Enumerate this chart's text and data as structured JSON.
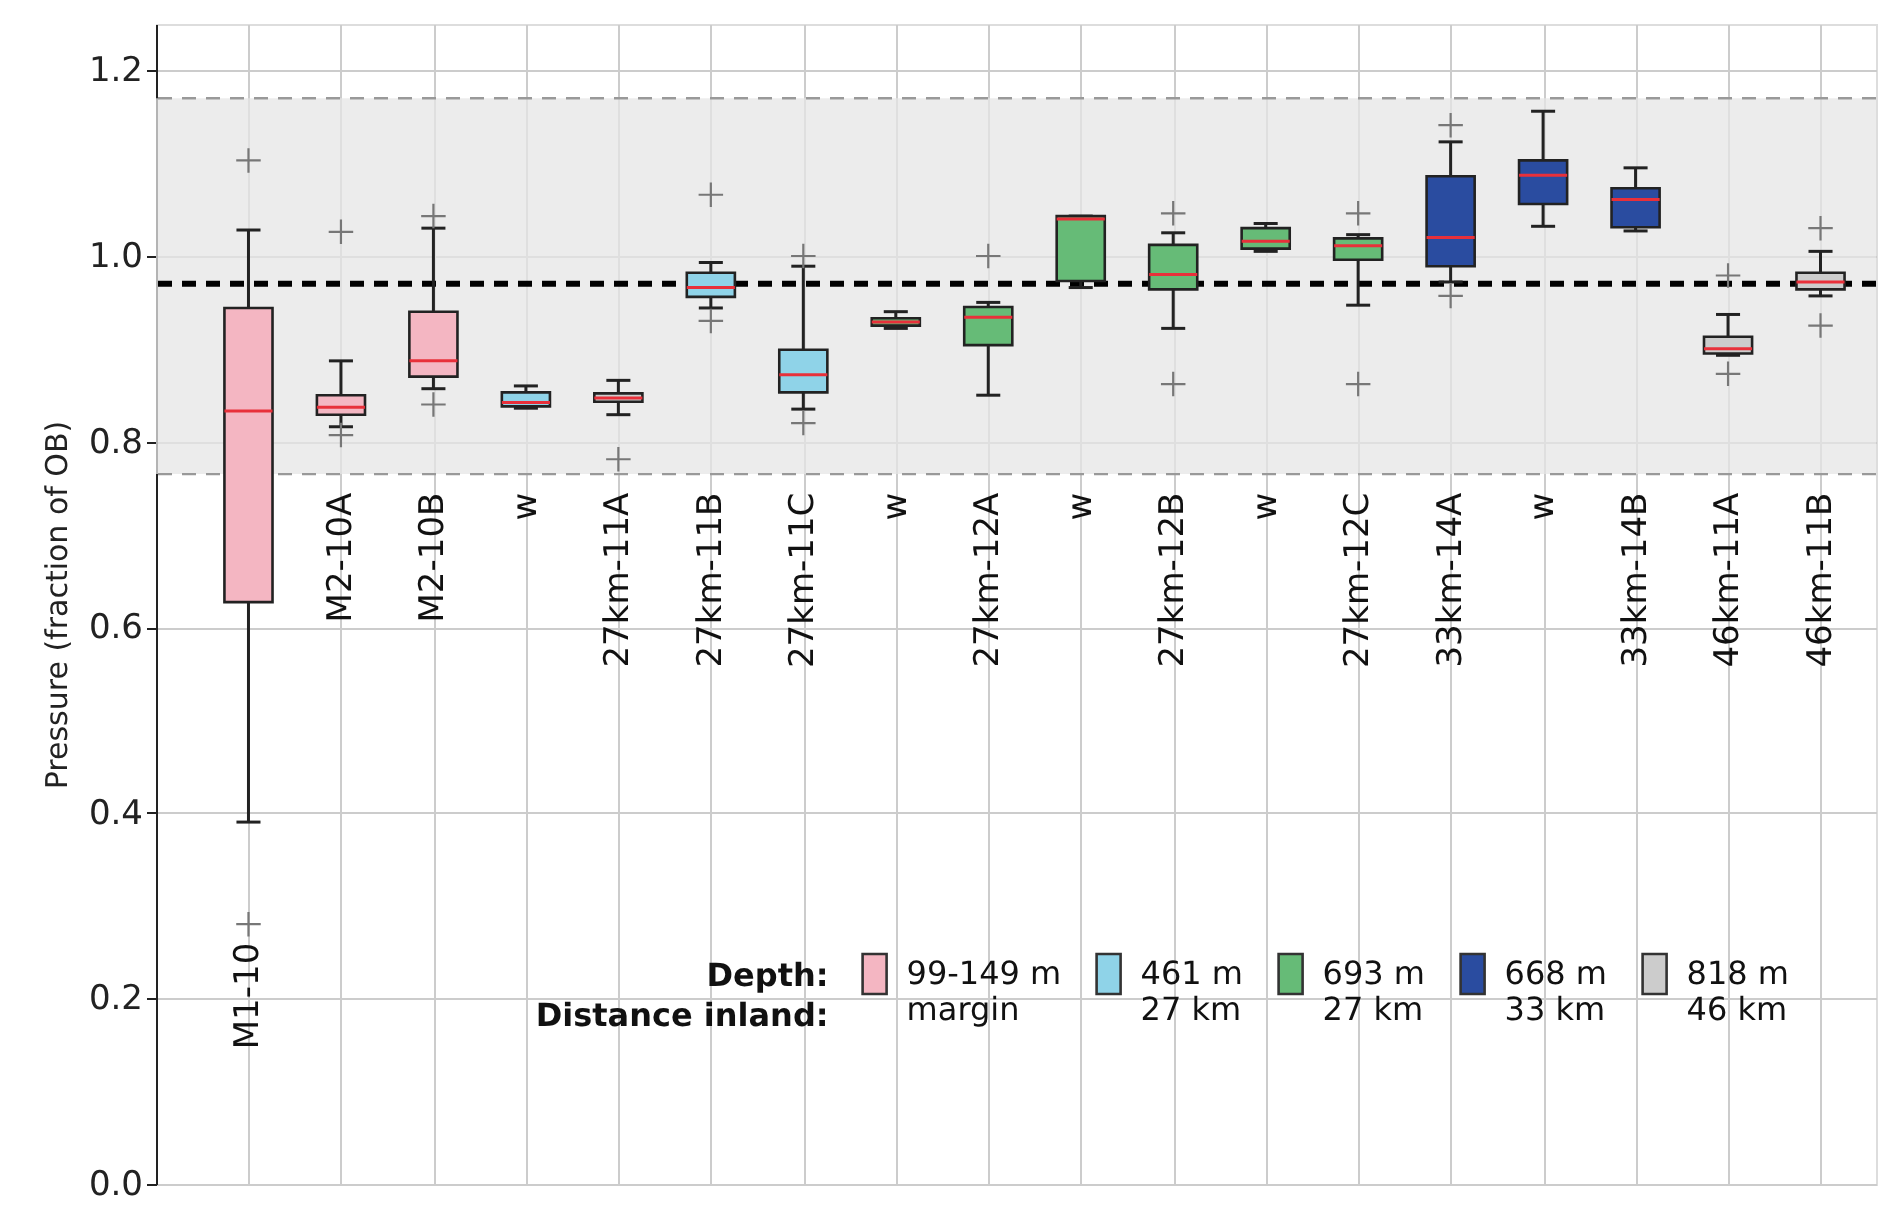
{
  "chart_data": {
    "type": "box",
    "ylabel": "Pressure (fraction of OB)",
    "categories": [
      "M1-10",
      "M2-10A",
      "M2-10B",
      "w",
      "27km-11A",
      "27km-11B",
      "27km-11C",
      "w",
      "27km-12A",
      "w",
      "27km-12B",
      "w",
      "27km-12C",
      "33km-14A",
      "w",
      "33km-14B",
      "46km-11A",
      "46km-11B"
    ],
    "series": [
      {
        "name": "99-149 m\nmargin",
        "color": "#f4b6c2",
        "boxes": [
          {
            "low": 0.39,
            "q1": 0.627,
            "median": 0.833,
            "q3": 0.944,
            "high": 1.028,
            "outliers": [
              1.103,
              0.28
            ]
          },
          {
            "low": 0.816,
            "q1": 0.829,
            "median": 0.837,
            "q3": 0.85,
            "high": 0.887,
            "outliers": [
              1.026,
              0.807
            ]
          },
          {
            "low": 0.857,
            "q1": 0.87,
            "median": 0.887,
            "q3": 0.94,
            "high": 1.03,
            "outliers": [
              1.043,
              0.84
            ]
          },
          null,
          null,
          null,
          null,
          null,
          null,
          null,
          null,
          null,
          null,
          null,
          null,
          null,
          null,
          null
        ]
      },
      {
        "name": "461 m\n27 km",
        "color": "#8fd3e8",
        "boxes": [
          null,
          null,
          null,
          {
            "low": 0.836,
            "q1": 0.838,
            "median": 0.842,
            "q3": 0.853,
            "high": 0.86
          },
          null,
          {
            "low": 0.944,
            "q1": 0.956,
            "median": 0.966,
            "q3": 0.982,
            "high": 0.993,
            "outliers": [
              1.066,
              0.93
            ]
          },
          {
            "low": 0.835,
            "q1": 0.853,
            "median": 0.872,
            "q3": 0.899,
            "high": 0.989,
            "outliers": [
              1.0,
              0.82
            ]
          },
          null,
          null,
          null,
          null,
          null,
          null,
          null,
          null,
          null,
          null,
          null
        ]
      },
      {
        "name": "693 m\n27 km",
        "color": "#66bb77",
        "boxes": [
          null,
          null,
          null,
          null,
          null,
          null,
          null,
          {
            "low": 0.922,
            "q1": 0.925,
            "median": 0.929,
            "q3": 0.933,
            "high": 0.94
          },
          {
            "low": 0.85,
            "q1": 0.904,
            "median": 0.934,
            "q3": 0.945,
            "high": 0.95,
            "outliers": [
              1.0
            ]
          },
          {
            "low": 0.966,
            "q1": 0.973,
            "median": 1.04,
            "q3": 1.043,
            "high": 1.043
          },
          {
            "low": 0.922,
            "q1": 0.964,
            "median": 0.98,
            "q3": 1.012,
            "high": 1.025,
            "outliers": [
              1.046,
              0.862
            ]
          },
          {
            "low": 1.005,
            "q1": 1.008,
            "median": 1.016,
            "q3": 1.03,
            "high": 1.035
          },
          {
            "low": 0.947,
            "q1": 0.996,
            "median": 1.011,
            "q3": 1.019,
            "high": 1.023,
            "outliers": [
              1.046,
              0.862
            ]
          },
          null,
          null,
          null,
          null,
          null
        ]
      },
      {
        "name": "668 m\n33 km",
        "color": "#2a4ca0",
        "boxes": [
          null,
          null,
          null,
          null,
          null,
          null,
          null,
          null,
          null,
          null,
          null,
          null,
          null,
          {
            "low": 0.972,
            "q1": 0.989,
            "median": 1.02,
            "q3": 1.086,
            "high": 1.123,
            "outliers": [
              1.141,
              0.957
            ]
          },
          {
            "low": 1.032,
            "q1": 1.056,
            "median": 1.087,
            "q3": 1.103,
            "high": 1.156
          },
          {
            "low": 1.027,
            "q1": 1.031,
            "median": 1.061,
            "q3": 1.073,
            "high": 1.095
          },
          null,
          null
        ]
      },
      {
        "name": "818 m\n46 km",
        "color": "#cccccc",
        "boxes": [
          null,
          null,
          null,
          null,
          {
            "low": 0.829,
            "q1": 0.843,
            "median": 0.847,
            "q3": 0.852,
            "high": 0.866,
            "outliers": [
              0.781
            ]
          },
          null,
          null,
          null,
          null,
          null,
          null,
          null,
          null,
          null,
          null,
          null,
          {
            "low": 0.893,
            "q1": 0.895,
            "median": 0.9,
            "q3": 0.913,
            "high": 0.937,
            "outliers": [
              0.979,
              0.873
            ]
          },
          {
            "low": 0.957,
            "q1": 0.964,
            "median": 0.972,
            "q3": 0.982,
            "high": 1.005,
            "outliers": [
              1.03,
              0.925
            ]
          }
        ]
      }
    ],
    "ylim": [
      0,
      1.25
    ],
    "yticks": [
      {
        "value": 0,
        "label": "0.0"
      },
      0.2,
      0.4,
      0.6,
      0.8,
      {
        "value": 1,
        "label": "1.0"
      },
      1.2
    ],
    "ref_lines": [
      {
        "axis": "y",
        "value": 0.97,
        "color": "#000000",
        "line_style": "dashed"
      },
      {
        "axis": "y",
        "value": 1.17,
        "color": "#999999",
        "line_style": "dashed"
      },
      {
        "axis": "y",
        "value": 0.765,
        "color": "#999999",
        "line_style": "dashed"
      }
    ],
    "bands": [
      {
        "axis": "y",
        "from": 0.765,
        "to": 1.17,
        "color": "#e6e6e6"
      }
    ],
    "annotations": [
      "Depth:",
      "Distance inland:"
    ],
    "legend": "bottom right",
    "grid": true,
    "marker": "cross"
  }
}
